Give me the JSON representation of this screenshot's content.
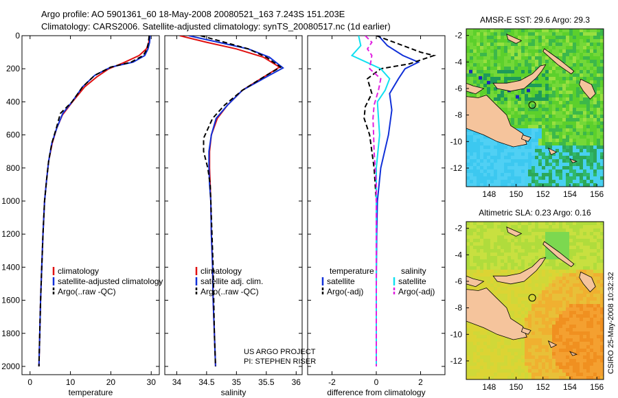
{
  "header": {
    "line1": "Argo profile: AO 5901361_60 18-May-2008 20080521_163 7.243S 151.203E",
    "line2": "Climatology: CARS2006. Satellite-adjusted climatology: synTS_20080517.nc (1d earlier)"
  },
  "credit": {
    "project": "US ARGO PROJECT",
    "pi": "PI: STEPHEN RISER",
    "stamp": "CSIRO 25-May-2008 10:32:32"
  },
  "colors": {
    "climatology": "#e01010",
    "satellite": "#1030d8",
    "argo": "#000000",
    "salinity_satellite": "#10e0f0",
    "salinity_argo": "#e020e0",
    "land": "#f5c49c"
  },
  "chart_data": [
    {
      "type": "line",
      "panel": "temperature",
      "xlabel": "temperature",
      "ylabel": "",
      "xlim": [
        -2,
        32
      ],
      "ylim": [
        2050,
        0
      ],
      "xticks": [
        0,
        10,
        20,
        30
      ],
      "yticks": [
        0,
        200,
        400,
        600,
        800,
        1000,
        1200,
        1400,
        1600,
        1800,
        2000
      ],
      "legend_position": "bottom-center",
      "series": [
        {
          "name": "climatology",
          "color": "#e01010",
          "dash": "solid",
          "points": [
            [
              29.6,
              0
            ],
            [
              29.4,
              40
            ],
            [
              28.8,
              80
            ],
            [
              27.0,
              120
            ],
            [
              23.0,
              165
            ],
            [
              19.5,
              200
            ],
            [
              16.5,
              250
            ],
            [
              13.5,
              310
            ],
            [
              10.5,
              400
            ],
            [
              8.0,
              480
            ],
            [
              6.6,
              560
            ],
            [
              5.5,
              650
            ],
            [
              4.6,
              760
            ],
            [
              4.1,
              870
            ],
            [
              3.6,
              1000
            ],
            [
              3.2,
              1200
            ],
            [
              2.9,
              1400
            ],
            [
              2.6,
              1600
            ],
            [
              2.4,
              1800
            ],
            [
              2.2,
              2000
            ]
          ]
        },
        {
          "name": "satellite-adjusted climatology",
          "color": "#1030d8",
          "dash": "solid",
          "points": [
            [
              29.7,
              0
            ],
            [
              29.6,
              40
            ],
            [
              29.2,
              80
            ],
            [
              28.4,
              120
            ],
            [
              25.5,
              160
            ],
            [
              20.0,
              190
            ],
            [
              16.0,
              240
            ],
            [
              13.0,
              310
            ],
            [
              10.4,
              400
            ],
            [
              8.1,
              470
            ],
            [
              6.6,
              560
            ],
            [
              5.4,
              650
            ],
            [
              4.6,
              760
            ],
            [
              4.1,
              870
            ],
            [
              3.6,
              1000
            ],
            [
              3.2,
              1200
            ],
            [
              2.9,
              1400
            ],
            [
              2.6,
              1600
            ],
            [
              2.4,
              1800
            ],
            [
              2.2,
              2000
            ]
          ]
        },
        {
          "name": "Argo(..raw -QC)",
          "color": "#000000",
          "dash": "dashed",
          "points": [
            [
              29.5,
              0
            ],
            [
              29.3,
              40
            ],
            [
              29.0,
              80
            ],
            [
              28.0,
              120
            ],
            [
              25.0,
              160
            ],
            [
              20.0,
              190
            ],
            [
              16.0,
              240
            ],
            [
              13.0,
              310
            ],
            [
              10.4,
              400
            ],
            [
              7.5,
              470
            ],
            [
              6.5,
              560
            ],
            [
              5.4,
              650
            ],
            [
              4.6,
              760
            ],
            [
              4.1,
              870
            ],
            [
              3.6,
              1000
            ],
            [
              3.2,
              1200
            ],
            [
              2.9,
              1400
            ],
            [
              2.6,
              1600
            ],
            [
              2.4,
              1800
            ],
            [
              2.2,
              2000
            ]
          ]
        }
      ],
      "legend": [
        "climatology",
        "satellite-adjusted climatology",
        "Argo(..raw -QC)"
      ]
    },
    {
      "type": "line",
      "panel": "salinity",
      "xlabel": "salinity",
      "ylabel": "",
      "xlim": [
        33.8,
        36.1
      ],
      "ylim": [
        2050,
        0
      ],
      "xticks": [
        34,
        34.5,
        35,
        35.5,
        36
      ],
      "yticks": [
        0,
        200,
        400,
        600,
        800,
        1000,
        1200,
        1400,
        1600,
        1800,
        2000
      ],
      "legend_position": "bottom-center",
      "series": [
        {
          "name": "climatology",
          "color": "#e01010",
          "dash": "solid",
          "points": [
            [
              34.05,
              0
            ],
            [
              34.5,
              40
            ],
            [
              35.0,
              80
            ],
            [
              35.45,
              130
            ],
            [
              35.72,
              190
            ],
            [
              35.5,
              240
            ],
            [
              35.1,
              330
            ],
            [
              34.85,
              420
            ],
            [
              34.68,
              500
            ],
            [
              34.58,
              600
            ],
            [
              34.55,
              700
            ],
            [
              34.55,
              800
            ],
            [
              34.56,
              900
            ],
            [
              34.57,
              1000
            ],
            [
              34.58,
              1200
            ],
            [
              34.6,
              1400
            ],
            [
              34.61,
              1600
            ],
            [
              34.63,
              1800
            ],
            [
              34.65,
              2000
            ]
          ]
        },
        {
          "name": "satellite adj. clim.",
          "color": "#1030d8",
          "dash": "solid",
          "points": [
            [
              34.2,
              0
            ],
            [
              34.7,
              40
            ],
            [
              35.2,
              80
            ],
            [
              35.55,
              130
            ],
            [
              35.78,
              195
            ],
            [
              35.55,
              240
            ],
            [
              35.1,
              330
            ],
            [
              34.85,
              420
            ],
            [
              34.66,
              500
            ],
            [
              34.58,
              600
            ],
            [
              34.54,
              700
            ],
            [
              34.54,
              800
            ],
            [
              34.55,
              900
            ],
            [
              34.57,
              1000
            ],
            [
              34.58,
              1200
            ],
            [
              34.6,
              1400
            ],
            [
              34.61,
              1600
            ],
            [
              34.63,
              1800
            ],
            [
              34.65,
              2000
            ]
          ]
        },
        {
          "name": "Argo(..raw -QC)",
          "color": "#000000",
          "dash": "dashed",
          "points": [
            [
              34.4,
              0
            ],
            [
              34.8,
              40
            ],
            [
              35.2,
              80
            ],
            [
              35.5,
              130
            ],
            [
              35.74,
              190
            ],
            [
              35.5,
              240
            ],
            [
              35.1,
              330
            ],
            [
              34.8,
              420
            ],
            [
              34.6,
              500
            ],
            [
              34.45,
              620
            ],
            [
              34.45,
              700
            ],
            [
              34.52,
              800
            ],
            [
              34.56,
              900
            ],
            [
              34.57,
              1000
            ],
            [
              34.59,
              1200
            ],
            [
              34.61,
              1400
            ],
            [
              34.62,
              1600
            ],
            [
              34.63,
              1800
            ],
            [
              34.65,
              2000
            ]
          ]
        }
      ],
      "legend": [
        "climatology",
        "satellite adj. clim.",
        "Argo(..raw -QC)"
      ]
    },
    {
      "type": "line",
      "panel": "difference",
      "xlabel": "difference from climatology",
      "ylabel": "",
      "xlim": [
        -3.1,
        3.1
      ],
      "ylim": [
        2050,
        0
      ],
      "xticks": [
        -2,
        0,
        2
      ],
      "yticks": [
        0,
        200,
        400,
        600,
        800,
        1000,
        1200,
        1400,
        1600,
        1800,
        2000
      ],
      "legend_position": "bottom",
      "legend_headers": [
        "temperature",
        "salinity"
      ],
      "series": [
        {
          "name": "satellite",
          "group": "temperature",
          "color": "#1030d8",
          "dash": "solid",
          "points": [
            [
              0.1,
              0
            ],
            [
              0.5,
              60
            ],
            [
              1.2,
              120
            ],
            [
              1.9,
              160
            ],
            [
              1.3,
              200
            ],
            [
              1.0,
              260
            ],
            [
              0.6,
              350
            ],
            [
              0.7,
              450
            ],
            [
              0.55,
              600
            ],
            [
              0.2,
              800
            ],
            [
              0.05,
              1000
            ],
            [
              0.02,
              1200
            ],
            [
              0.0,
              1500
            ],
            [
              0.0,
              2000
            ]
          ]
        },
        {
          "name": "Argo(-adj)",
          "group": "temperature",
          "color": "#000000",
          "dash": "dashed",
          "points": [
            [
              0.0,
              0
            ],
            [
              1.0,
              50
            ],
            [
              2.0,
              100
            ],
            [
              2.6,
              120
            ],
            [
              1.5,
              170
            ],
            [
              0.2,
              200
            ],
            [
              -0.4,
              260
            ],
            [
              -0.2,
              350
            ],
            [
              -0.5,
              430
            ],
            [
              -0.55,
              500
            ],
            [
              -0.3,
              600
            ],
            [
              -0.1,
              800
            ],
            [
              0.0,
              1000
            ],
            [
              0.0,
              1300
            ],
            [
              0.0,
              1600
            ],
            [
              0.0,
              2000
            ]
          ]
        },
        {
          "name": "satellite",
          "group": "salinity",
          "color": "#10e0f0",
          "dash": "solid",
          "points": [
            [
              -0.8,
              0
            ],
            [
              -0.7,
              60
            ],
            [
              -1.1,
              120
            ],
            [
              0.2,
              200
            ],
            [
              0.6,
              260
            ],
            [
              0.4,
              330
            ],
            [
              0.05,
              400
            ],
            [
              0.1,
              500
            ],
            [
              0.15,
              600
            ],
            [
              0.0,
              800
            ],
            [
              0.0,
              1200
            ],
            [
              0.0,
              1600
            ],
            [
              0.0,
              2000
            ]
          ]
        },
        {
          "name": "Argo(-adj)",
          "group": "salinity",
          "color": "#e020e0",
          "dash": "dashed",
          "points": [
            [
              -0.5,
              0
            ],
            [
              -0.2,
              40
            ],
            [
              -0.4,
              80
            ],
            [
              -0.2,
              120
            ],
            [
              -0.3,
              200
            ],
            [
              0.2,
              260
            ],
            [
              0.1,
              330
            ],
            [
              -0.1,
              420
            ],
            [
              -0.15,
              500
            ],
            [
              -0.12,
              600
            ],
            [
              -0.1,
              700
            ],
            [
              0.0,
              900
            ],
            [
              0.0,
              1200
            ],
            [
              0.0,
              2000
            ]
          ]
        }
      ],
      "legend": [
        "satellite",
        "Argo(-adj)",
        "satellite",
        "Argo(-adj)"
      ]
    },
    {
      "type": "heatmap",
      "panel": "map",
      "title": "AMSR-E SST: 29.6 Argo: 29.3",
      "xlim": [
        146.3,
        156.5
      ],
      "ylim": [
        -13.4,
        -1.5
      ],
      "xticks": [
        148,
        150,
        152,
        154,
        156
      ],
      "yticks": [
        -2,
        -4,
        -6,
        -8,
        -10,
        -12
      ],
      "profile_marker": {
        "lon": 151.2,
        "lat": -7.24
      }
    },
    {
      "type": "heatmap",
      "panel": "map",
      "title": "Altimetric SLA: 0.23 Argo: 0.16",
      "xlim": [
        146.3,
        156.5
      ],
      "ylim": [
        -13.4,
        -1.5
      ],
      "xticks": [
        148,
        150,
        152,
        154,
        156
      ],
      "yticks": [
        -2,
        -4,
        -6,
        -8,
        -10,
        -12
      ],
      "profile_marker": {
        "lon": 151.2,
        "lat": -7.24
      }
    }
  ]
}
